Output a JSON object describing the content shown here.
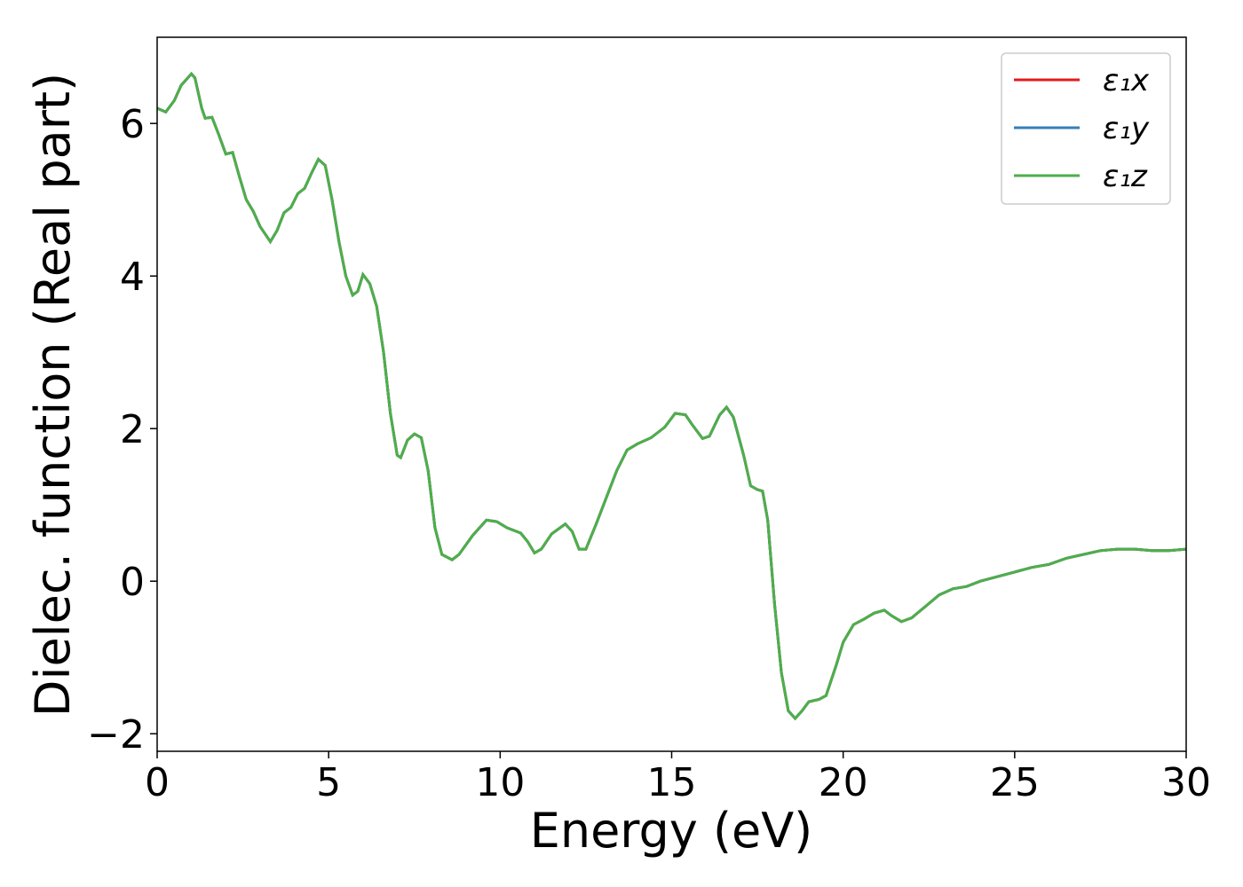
{
  "chart_data": {
    "type": "line",
    "xlabel": "Energy (eV)",
    "ylabel": "Dielec. function (Real part)",
    "x": [
      0,
      0.25,
      0.5,
      0.7,
      1.0,
      1.1,
      1.3,
      1.4,
      1.6,
      1.8,
      2.0,
      2.2,
      2.4,
      2.6,
      2.8,
      3.0,
      3.3,
      3.5,
      3.7,
      3.9,
      4.1,
      4.3,
      4.5,
      4.7,
      4.9,
      5.1,
      5.3,
      5.5,
      5.7,
      5.85,
      6.0,
      6.2,
      6.4,
      6.6,
      6.8,
      7.0,
      7.1,
      7.3,
      7.5,
      7.7,
      7.9,
      8.1,
      8.3,
      8.6,
      8.8,
      9.2,
      9.6,
      9.9,
      10.2,
      10.6,
      10.8,
      11.0,
      11.2,
      11.5,
      11.9,
      12.1,
      12.3,
      12.5,
      12.8,
      13.1,
      13.4,
      13.7,
      14.0,
      14.4,
      14.8,
      15.1,
      15.4,
      15.6,
      15.9,
      16.1,
      16.4,
      16.6,
      16.8,
      17.1,
      17.3,
      17.5,
      17.65,
      17.8,
      18.0,
      18.2,
      18.4,
      18.6,
      18.8,
      19.0,
      19.3,
      19.5,
      19.8,
      20.0,
      20.3,
      20.6,
      20.9,
      21.2,
      21.4,
      21.7,
      22.0,
      22.4,
      22.8,
      23.2,
      23.6,
      24.0,
      24.5,
      25.0,
      25.5,
      26.0,
      26.5,
      27.0,
      27.5,
      28.0,
      28.5,
      29.0,
      29.5,
      30.0
    ],
    "series": [
      {
        "name": "ε₁x",
        "color": "#e41a1c",
        "values": [
          6.2,
          6.15,
          6.3,
          6.5,
          6.65,
          6.6,
          6.2,
          6.07,
          6.08,
          5.85,
          5.6,
          5.62,
          5.3,
          5.0,
          4.85,
          4.65,
          4.45,
          4.6,
          4.83,
          4.9,
          5.08,
          5.15,
          5.35,
          5.53,
          5.45,
          5.0,
          4.45,
          4.0,
          3.75,
          3.8,
          4.02,
          3.9,
          3.6,
          3.0,
          2.2,
          1.65,
          1.62,
          1.85,
          1.93,
          1.88,
          1.45,
          0.7,
          0.35,
          0.28,
          0.35,
          0.6,
          0.8,
          0.78,
          0.7,
          0.63,
          0.52,
          0.37,
          0.42,
          0.62,
          0.75,
          0.65,
          0.42,
          0.42,
          0.75,
          1.1,
          1.45,
          1.72,
          1.8,
          1.88,
          2.02,
          2.2,
          2.18,
          2.05,
          1.87,
          1.9,
          2.18,
          2.28,
          2.15,
          1.65,
          1.25,
          1.2,
          1.18,
          0.8,
          -0.3,
          -1.2,
          -1.7,
          -1.8,
          -1.7,
          -1.58,
          -1.55,
          -1.5,
          -1.1,
          -0.8,
          -0.57,
          -0.5,
          -0.42,
          -0.38,
          -0.45,
          -0.53,
          -0.48,
          -0.33,
          -0.18,
          -0.1,
          -0.07,
          0.0,
          0.06,
          0.12,
          0.18,
          0.22,
          0.3,
          0.35,
          0.4,
          0.42,
          0.42,
          0.4,
          0.4,
          0.42
        ]
      },
      {
        "name": "ε₁y",
        "color": "#377eb8",
        "values": [
          6.2,
          6.15,
          6.3,
          6.5,
          6.65,
          6.6,
          6.2,
          6.07,
          6.08,
          5.85,
          5.6,
          5.62,
          5.3,
          5.0,
          4.85,
          4.65,
          4.45,
          4.6,
          4.83,
          4.9,
          5.08,
          5.15,
          5.35,
          5.53,
          5.45,
          5.0,
          4.45,
          4.0,
          3.75,
          3.8,
          4.02,
          3.9,
          3.6,
          3.0,
          2.2,
          1.65,
          1.62,
          1.85,
          1.93,
          1.88,
          1.45,
          0.7,
          0.35,
          0.28,
          0.35,
          0.6,
          0.8,
          0.78,
          0.7,
          0.63,
          0.52,
          0.37,
          0.42,
          0.62,
          0.75,
          0.65,
          0.42,
          0.42,
          0.75,
          1.1,
          1.45,
          1.72,
          1.8,
          1.88,
          2.02,
          2.2,
          2.18,
          2.05,
          1.87,
          1.9,
          2.18,
          2.28,
          2.15,
          1.65,
          1.25,
          1.2,
          1.18,
          0.8,
          -0.3,
          -1.2,
          -1.7,
          -1.8,
          -1.7,
          -1.58,
          -1.55,
          -1.5,
          -1.1,
          -0.8,
          -0.57,
          -0.5,
          -0.42,
          -0.38,
          -0.45,
          -0.53,
          -0.48,
          -0.33,
          -0.18,
          -0.1,
          -0.07,
          0.0,
          0.06,
          0.12,
          0.18,
          0.22,
          0.3,
          0.35,
          0.4,
          0.42,
          0.42,
          0.4,
          0.4,
          0.42
        ]
      },
      {
        "name": "ε₁z",
        "color": "#4daf4a",
        "values": [
          6.2,
          6.15,
          6.3,
          6.5,
          6.65,
          6.6,
          6.2,
          6.07,
          6.08,
          5.85,
          5.6,
          5.62,
          5.3,
          5.0,
          4.85,
          4.65,
          4.45,
          4.6,
          4.83,
          4.9,
          5.08,
          5.15,
          5.35,
          5.53,
          5.45,
          5.0,
          4.45,
          4.0,
          3.75,
          3.8,
          4.02,
          3.9,
          3.6,
          3.0,
          2.2,
          1.65,
          1.62,
          1.85,
          1.93,
          1.88,
          1.45,
          0.7,
          0.35,
          0.28,
          0.35,
          0.6,
          0.8,
          0.78,
          0.7,
          0.63,
          0.52,
          0.37,
          0.42,
          0.62,
          0.75,
          0.65,
          0.42,
          0.42,
          0.75,
          1.1,
          1.45,
          1.72,
          1.8,
          1.88,
          2.02,
          2.2,
          2.18,
          2.05,
          1.87,
          1.9,
          2.18,
          2.28,
          2.15,
          1.65,
          1.25,
          1.2,
          1.18,
          0.8,
          -0.3,
          -1.2,
          -1.7,
          -1.8,
          -1.7,
          -1.58,
          -1.55,
          -1.5,
          -1.1,
          -0.8,
          -0.57,
          -0.5,
          -0.42,
          -0.38,
          -0.45,
          -0.53,
          -0.48,
          -0.33,
          -0.18,
          -0.1,
          -0.07,
          0.0,
          0.06,
          0.12,
          0.18,
          0.22,
          0.3,
          0.35,
          0.4,
          0.42,
          0.42,
          0.4,
          0.4,
          0.42
        ]
      }
    ],
    "xlim": [
      0,
      30
    ],
    "xticks": [
      0,
      5,
      10,
      15,
      20,
      25,
      30
    ],
    "ylim": [
      -2.23,
      7.13
    ],
    "yticks": [
      {
        "value": -2,
        "label": "−2"
      },
      0,
      2,
      4,
      6
    ],
    "grid": false,
    "legend": "upper right"
  }
}
